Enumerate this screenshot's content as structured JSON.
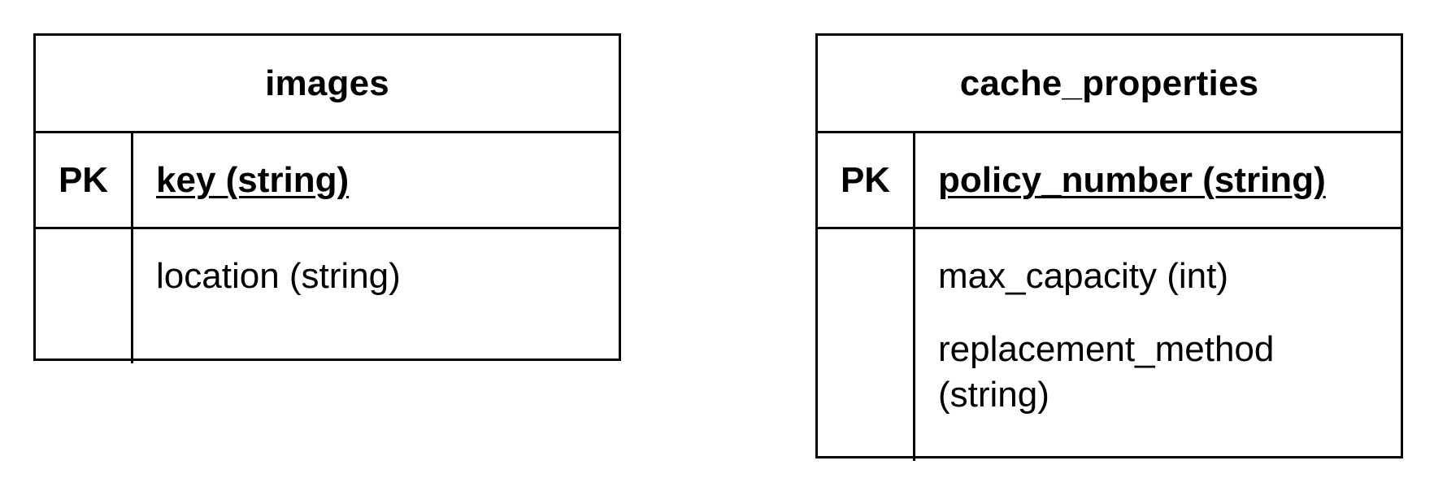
{
  "diagram": {
    "entities": [
      {
        "name": "images",
        "primary_key": {
          "marker": "PK",
          "field": "key (string)"
        },
        "attributes": [
          "location (string)"
        ]
      },
      {
        "name": "cache_properties",
        "primary_key": {
          "marker": "PK",
          "field": "policy_number (string)"
        },
        "attributes": [
          "max_capacity (int)",
          "replacement_method (string)"
        ]
      }
    ]
  }
}
